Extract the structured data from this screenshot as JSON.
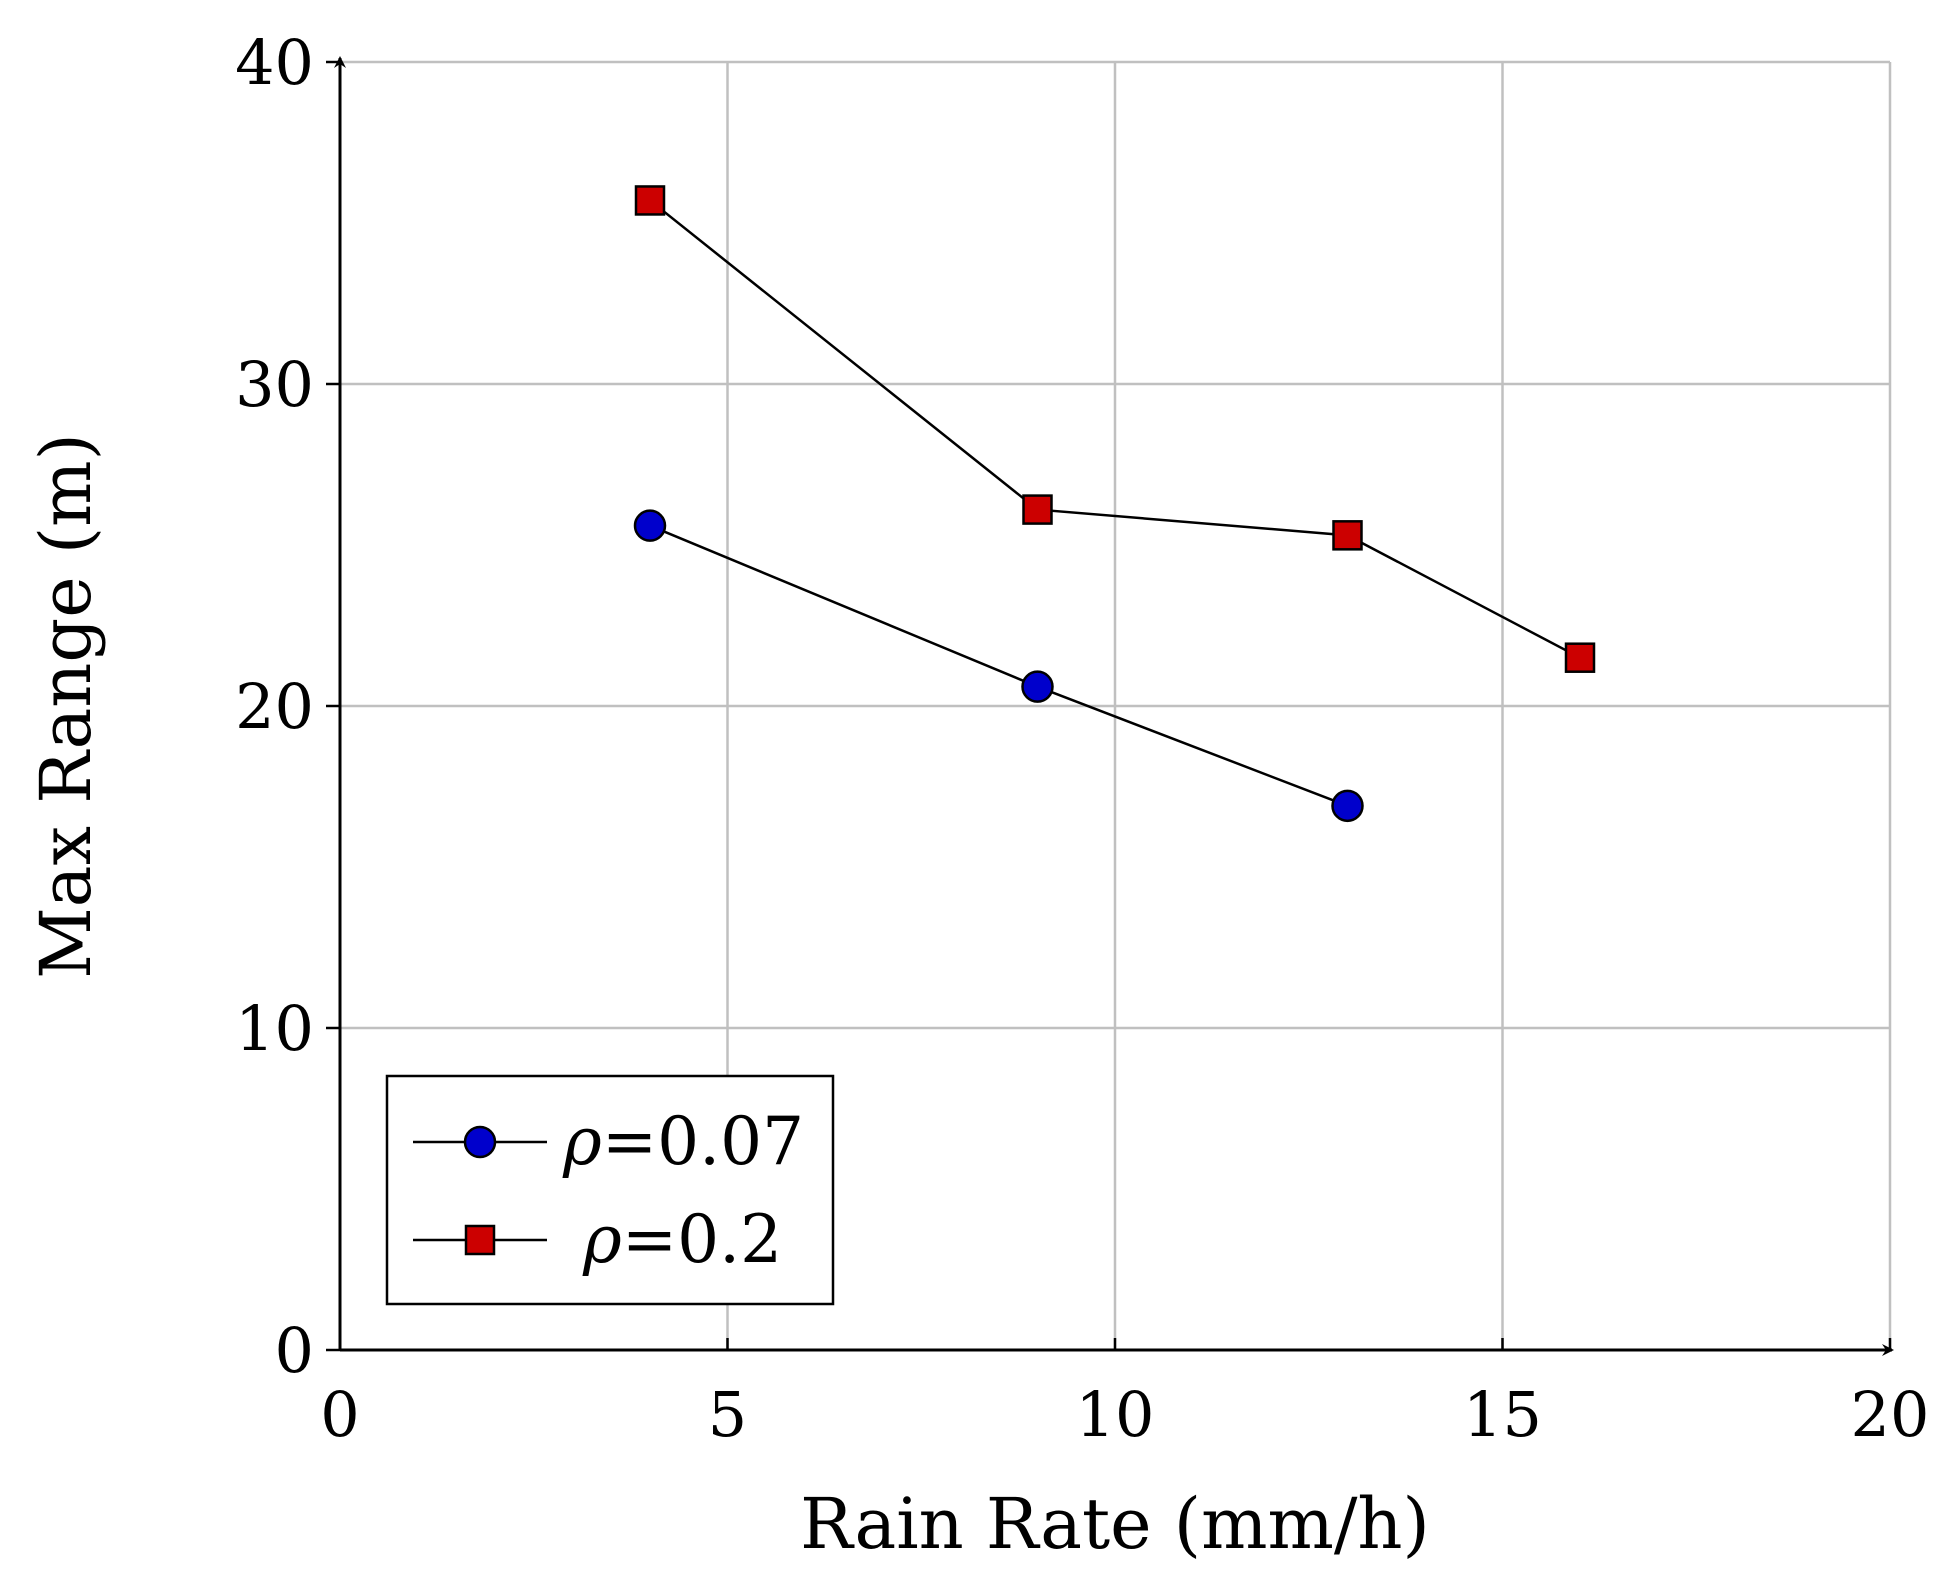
{
  "chart_data": {
    "type": "line",
    "title": "",
    "xlabel": "Rain Rate (mm/h)",
    "ylabel": "Max Range (m)",
    "xlim": [
      0,
      20
    ],
    "ylim": [
      0,
      40
    ],
    "xticks": [
      0,
      5,
      10,
      15,
      20
    ],
    "yticks": [
      0,
      10,
      20,
      30,
      40
    ],
    "xtick_labels": [
      "0",
      "5",
      "10",
      "15",
      "20"
    ],
    "ytick_labels": [
      "0",
      "10",
      "20",
      "30",
      "40"
    ],
    "grid": true,
    "legend_position": "bottom-left",
    "series": [
      {
        "name": "ρ=0.07",
        "symbol": "ρ",
        "value_label": "=0.07",
        "marker": "circle",
        "color": "#0000cc",
        "x": [
          4,
          9,
          13
        ],
        "y": [
          25.6,
          20.6,
          16.9
        ]
      },
      {
        "name": "ρ=0.2",
        "symbol": "ρ",
        "value_label": "=0.2",
        "marker": "square",
        "color": "#cc0000",
        "x": [
          4,
          9,
          13,
          16
        ],
        "y": [
          35.7,
          26.1,
          25.3,
          21.5
        ]
      }
    ]
  }
}
